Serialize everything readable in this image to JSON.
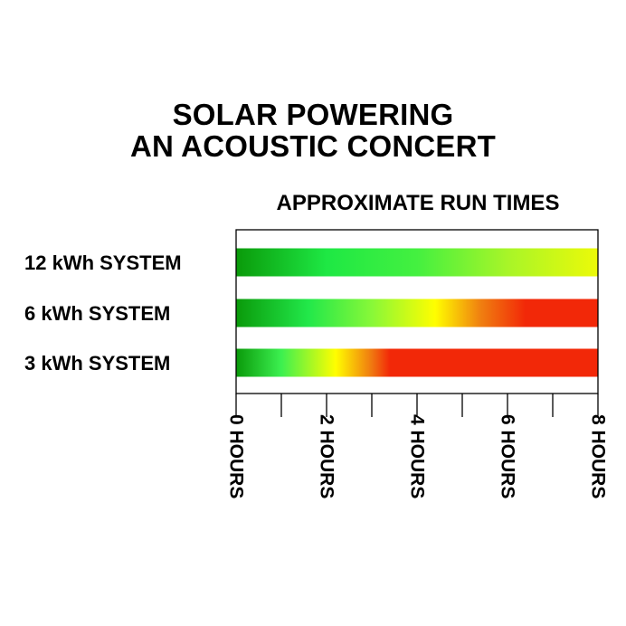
{
  "title_line1": "SOLAR POWERING",
  "title_line2": "AN ACOUSTIC CONCERT",
  "chart_data": {
    "type": "bar",
    "orientation": "horizontal",
    "subtitle": "APPROXIMATE RUN TIMES",
    "categories": [
      "12 kWh SYSTEM",
      "6 kWh SYSTEM",
      "3 kWh SYSTEM"
    ],
    "values": [
      8,
      8,
      8
    ],
    "xlim": [
      0,
      8
    ],
    "x_unit": "HOURS",
    "x_ticks": [
      0,
      1,
      2,
      3,
      4,
      5,
      6,
      7,
      8
    ],
    "x_tick_labels": [
      {
        "value": 0,
        "label": "0 HOURS"
      },
      {
        "value": 2,
        "label": "2 HOURS"
      },
      {
        "value": 4,
        "label": "4 HOURS"
      },
      {
        "value": 6,
        "label": "6 HOURS"
      },
      {
        "value": 8,
        "label": "8 HOURS"
      }
    ],
    "gradient_stops": [
      [
        {
          "hours": 0,
          "color": "#0a9a0a"
        },
        {
          "hours": 2,
          "color": "#1ee844"
        },
        {
          "hours": 4,
          "color": "#44f040"
        },
        {
          "hours": 6,
          "color": "#a8f528"
        },
        {
          "hours": 8,
          "color": "#ecfa08"
        }
      ],
      [
        {
          "hours": 0,
          "color": "#0a9a0a"
        },
        {
          "hours": 1.6,
          "color": "#22e84a"
        },
        {
          "hours": 3,
          "color": "#88f838"
        },
        {
          "hours": 4.4,
          "color": "#fffe00"
        },
        {
          "hours": 5.4,
          "color": "#f08010"
        },
        {
          "hours": 6.4,
          "color": "#f22808"
        },
        {
          "hours": 8,
          "color": "#f22808"
        }
      ],
      [
        {
          "hours": 0,
          "color": "#0a9a0a"
        },
        {
          "hours": 1.0,
          "color": "#3cf050"
        },
        {
          "hours": 2.2,
          "color": "#fffe00"
        },
        {
          "hours": 3.0,
          "color": "#f07810"
        },
        {
          "hours": 3.4,
          "color": "#f22808"
        },
        {
          "hours": 8,
          "color": "#f22808"
        }
      ]
    ],
    "grid": false,
    "legend": "none"
  }
}
